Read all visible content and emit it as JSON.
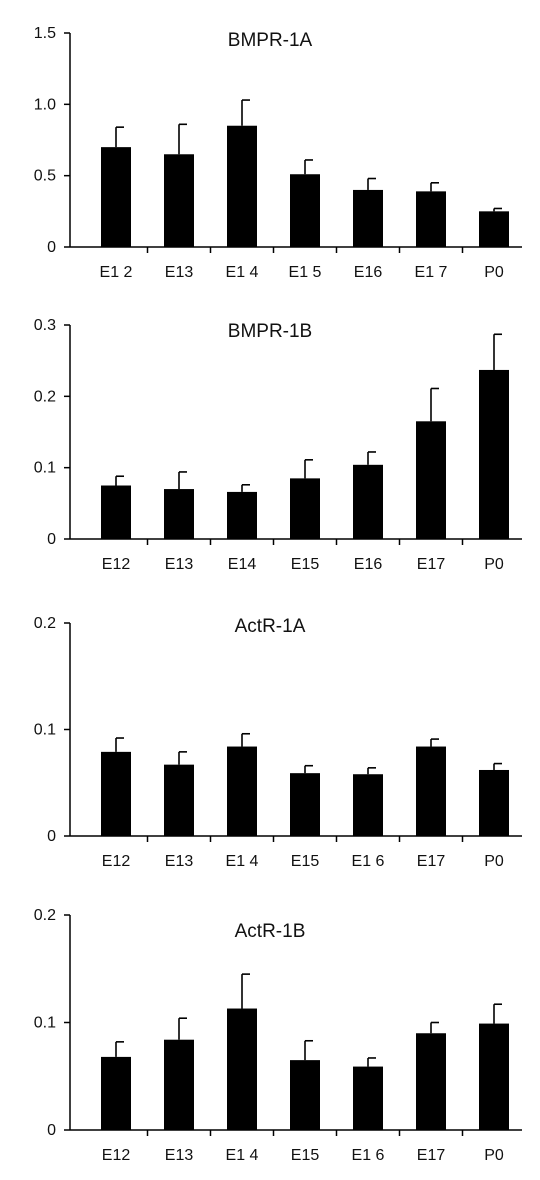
{
  "chart_data": [
    {
      "type": "bar",
      "title": "BMPR-1A",
      "xlabel": "",
      "ylabel": "",
      "categories": [
        "E1 2",
        "E13",
        "E1 4",
        "E1 5",
        "E16",
        "E1 7",
        "P0"
      ],
      "values": [
        0.7,
        0.65,
        0.85,
        0.51,
        0.4,
        0.39,
        0.25
      ],
      "errors": [
        0.14,
        0.21,
        0.18,
        0.1,
        0.08,
        0.06,
        0.02
      ],
      "ylim": [
        0,
        1.5
      ],
      "yticks": [
        0,
        0.5,
        1.0,
        1.5
      ],
      "ytick_labels": [
        "0",
        "0.5",
        "1.0",
        "1.5"
      ],
      "grid": false,
      "colors": {
        "bar": "#000000",
        "axis": "#000000"
      }
    },
    {
      "type": "bar",
      "title": "BMPR-1B",
      "xlabel": "",
      "ylabel": "",
      "categories": [
        "E12",
        "E13",
        "E14",
        "E15",
        "E16",
        "E17",
        "P0"
      ],
      "values": [
        0.075,
        0.07,
        0.066,
        0.085,
        0.104,
        0.165,
        0.237
      ],
      "errors": [
        0.013,
        0.024,
        0.01,
        0.026,
        0.018,
        0.046,
        0.05
      ],
      "ylim": [
        0,
        0.3
      ],
      "yticks": [
        0,
        0.1,
        0.2,
        0.3
      ],
      "ytick_labels": [
        "0",
        "0.1",
        "0.2",
        "0.3"
      ],
      "grid": false,
      "colors": {
        "bar": "#000000",
        "axis": "#000000"
      }
    },
    {
      "type": "bar",
      "title": "ActR-1A",
      "xlabel": "",
      "ylabel": "",
      "categories": [
        "E12",
        "E13",
        "E1 4",
        "E15",
        "E1 6",
        "E17",
        "P0"
      ],
      "values": [
        0.079,
        0.067,
        0.084,
        0.059,
        0.058,
        0.084,
        0.062
      ],
      "errors": [
        0.013,
        0.012,
        0.012,
        0.007,
        0.006,
        0.007,
        0.006
      ],
      "ylim": [
        0,
        0.2
      ],
      "yticks": [
        0,
        0.1,
        0.2
      ],
      "ytick_labels": [
        "0",
        "0.1",
        "0.2"
      ],
      "grid": false,
      "colors": {
        "bar": "#000000",
        "axis": "#000000"
      }
    },
    {
      "type": "bar",
      "title": "ActR-1B",
      "xlabel": "",
      "ylabel": "",
      "categories": [
        "E12",
        "E13",
        "E1 4",
        "E15",
        "E1 6",
        "E17",
        "P0"
      ],
      "values": [
        0.068,
        0.084,
        0.113,
        0.065,
        0.059,
        0.09,
        0.099
      ],
      "errors": [
        0.014,
        0.02,
        0.032,
        0.018,
        0.008,
        0.01,
        0.018
      ],
      "ylim": [
        0,
        0.2
      ],
      "yticks": [
        0,
        0.1,
        0.2
      ],
      "ytick_labels": [
        "0",
        "0.1",
        "0.2"
      ],
      "grid": false,
      "colors": {
        "bar": "#000000",
        "axis": "#000000"
      }
    }
  ]
}
